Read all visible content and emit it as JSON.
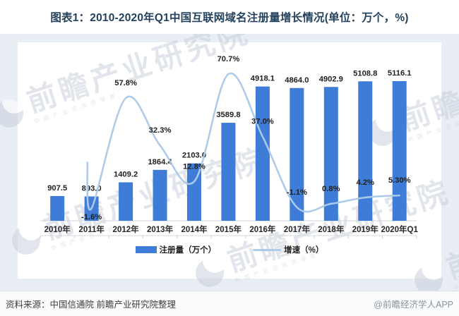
{
  "title": "图表1：2010-2020年Q1中国互联网域名注册量增长情况(单位：万个，%)",
  "chart_data": {
    "type": "bar+line",
    "categories": [
      "2010年",
      "2011年",
      "2012年",
      "2013年",
      "2014年",
      "2015年",
      "2016年",
      "2017年",
      "2018年",
      "2019年",
      "2020年Q1"
    ],
    "series": [
      {
        "name": "注册量（万个）",
        "type": "bar",
        "color": "#3E7CD7",
        "values": [
          907.5,
          893.0,
          1409.2,
          1864.4,
          2103.0,
          3589.8,
          4918.1,
          4864.0,
          4902.9,
          5108.8,
          5116.1
        ],
        "value_labels": [
          "907.5",
          "893.0",
          "1409.2",
          "1864.4",
          "2103.0",
          "3589.8",
          "4918.1",
          "4864.0",
          "4902.9",
          "5108.8",
          "5116.1"
        ]
      },
      {
        "name": "增速（%）",
        "type": "line",
        "color": "#ABCBE9",
        "values": [
          null,
          -1.6,
          57.8,
          32.3,
          12.8,
          70.7,
          37.0,
          -1.1,
          0.8,
          4.2,
          5.3
        ],
        "value_labels": [
          "",
          "-1.6%",
          "57.8%",
          "32.3%",
          "12.8%",
          "70.7%",
          "37.0%",
          "-1.1%",
          "0.8%",
          "4.2%",
          "5.30%"
        ]
      }
    ],
    "grid": false,
    "legend_position": "bottom",
    "y_axis_visible": false
  },
  "watermark": {
    "text": "前瞻产业研究院",
    "subtext": "中国产业咨询领导者"
  },
  "footer": {
    "source": "资料来源：中国信通院  前瞻产业研究院整理",
    "credit": "@前瞻经济学人APP"
  },
  "colors": {
    "title": "#24425e",
    "page_band": "#e9edf4",
    "axis_line": "#d2d6dd",
    "label_text": "#1f1f1f"
  }
}
